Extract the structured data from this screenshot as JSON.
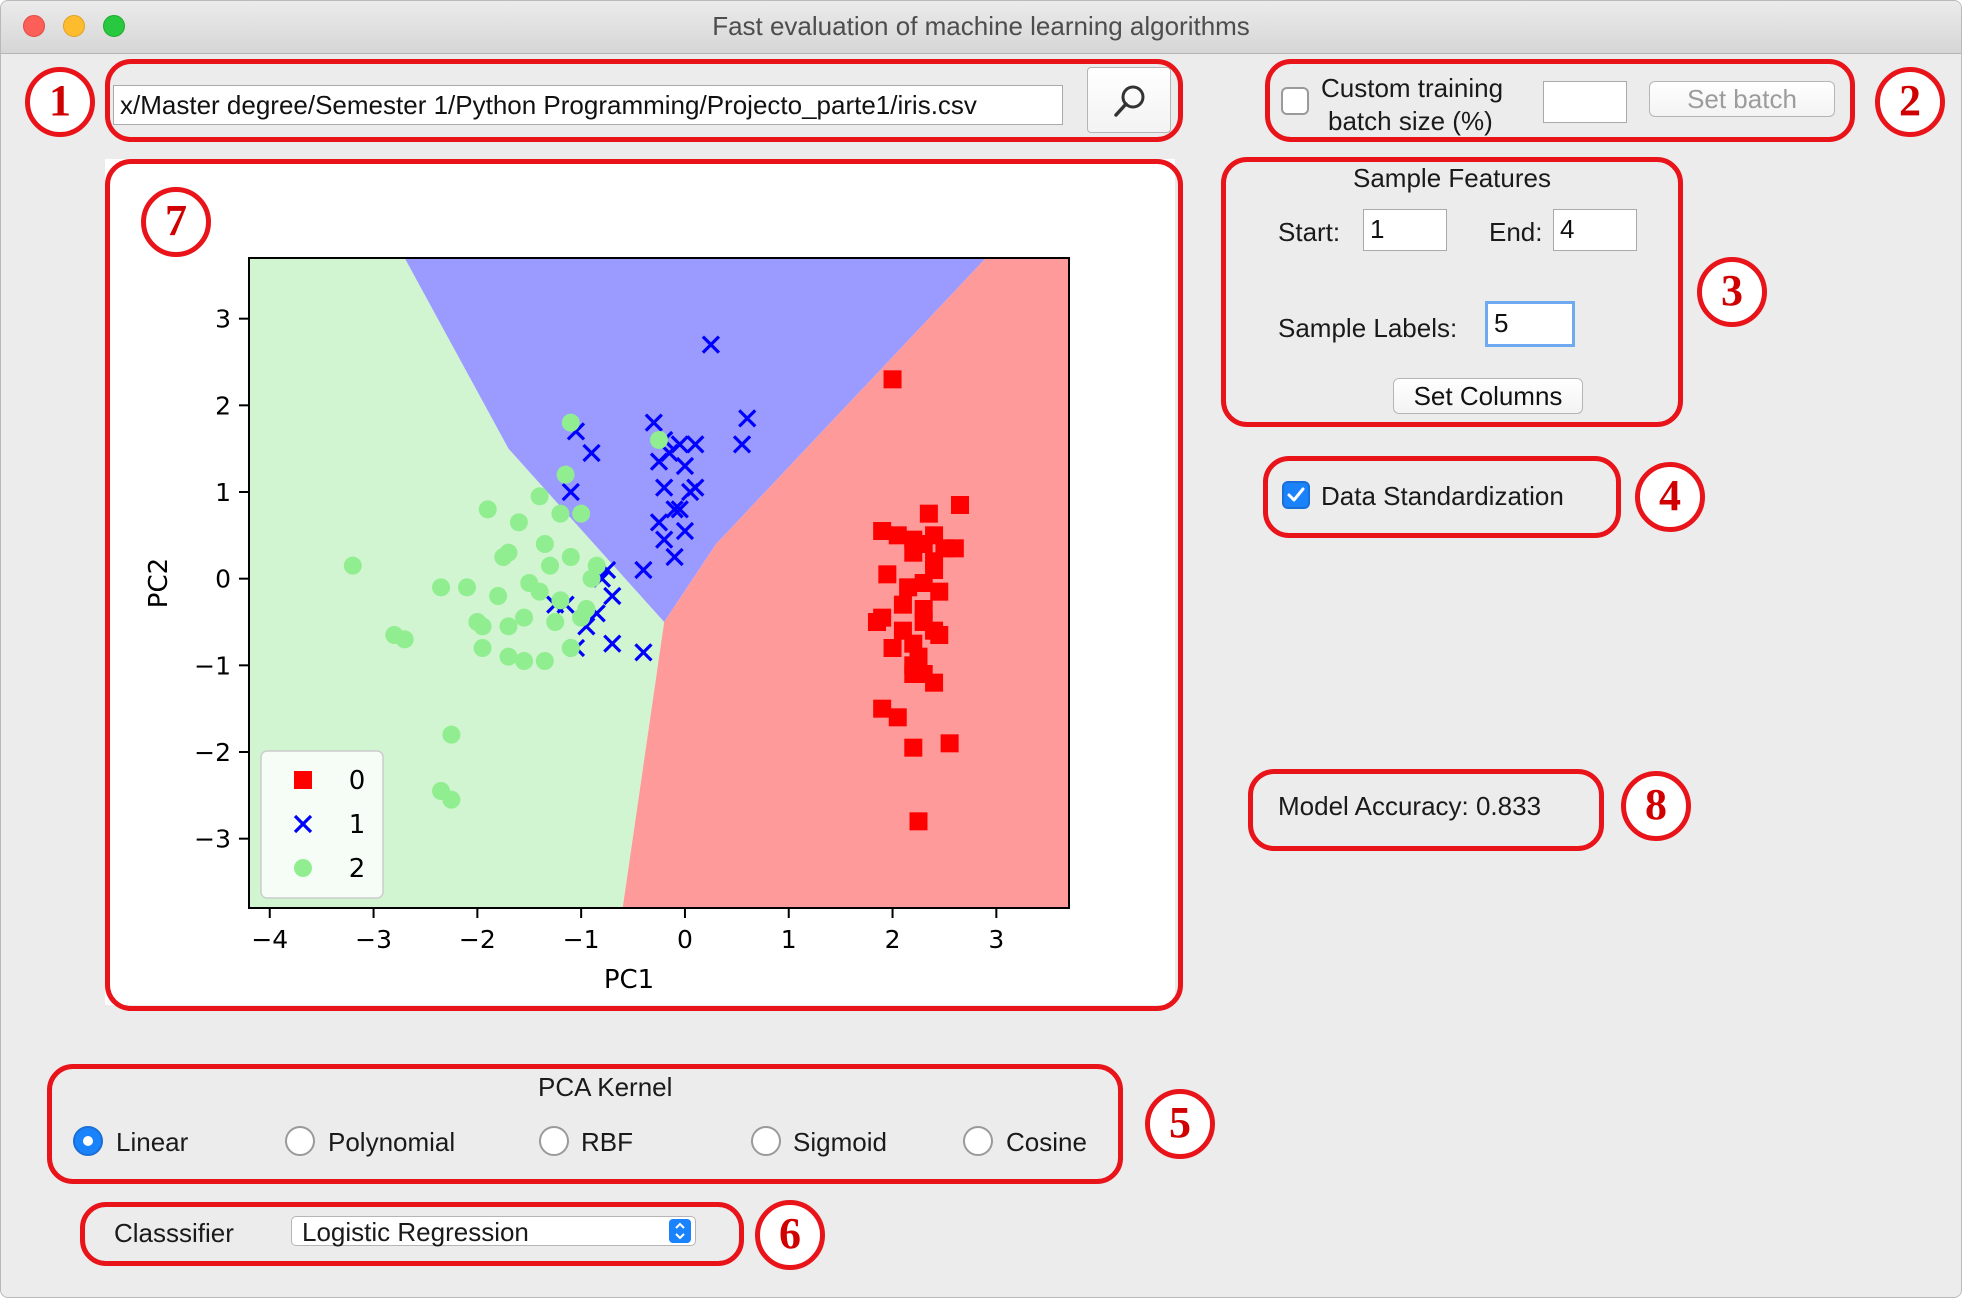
{
  "window": {
    "title": "Fast evaluation of machine learning algorithms"
  },
  "file_path": {
    "value": "x/Master degree/Semester 1/Python Programming/Projecto_parte1/iris.csv"
  },
  "batch": {
    "checkbox_label_line1": "Custom training",
    "checkbox_label_line2": "batch size (%)",
    "checked": false,
    "value": "",
    "button_label": "Set batch"
  },
  "sample_features": {
    "title": "Sample Features",
    "start_label": "Start:",
    "start_value": "1",
    "end_label": "End:",
    "end_value": "4",
    "labels_label": "Sample Labels:",
    "labels_value": "5",
    "button_label": "Set Columns"
  },
  "standardization": {
    "label": "Data Standardization",
    "checked": true
  },
  "accuracy": {
    "text": "Model Accuracy: 0.833"
  },
  "pca_kernel": {
    "title": "PCA Kernel",
    "options": [
      "Linear",
      "Polynomial",
      "RBF",
      "Sigmoid",
      "Cosine"
    ],
    "selected": "Linear"
  },
  "classifier": {
    "label": "Classsifier",
    "selected": "Logistic Regression"
  },
  "annotations": [
    "1",
    "2",
    "3",
    "4",
    "5",
    "6",
    "7",
    "8"
  ],
  "colors": {
    "highlight": "#e8141a",
    "class0": "#ff0000",
    "class1": "#0000ff",
    "class2": "#90ee90",
    "region0": "#ff9a9a",
    "region1": "#9a9aff",
    "region2": "#d0f5d0"
  },
  "chart_data": {
    "type": "scatter",
    "title": "",
    "xlabel": "PC1",
    "ylabel": "PC2",
    "xlim": [
      -4.2,
      3.7
    ],
    "ylim": [
      -3.8,
      3.7
    ],
    "xticks": [
      -4,
      -3,
      -2,
      -1,
      0,
      1,
      2,
      3
    ],
    "yticks": [
      -3,
      -2,
      -1,
      0,
      1,
      2,
      3
    ],
    "tick_labels_x": [
      "−4",
      "−3",
      "−2",
      "−1",
      "0",
      "1",
      "2",
      "3"
    ],
    "tick_labels_y": [
      "−3",
      "−2",
      "−1",
      "0",
      "1",
      "2",
      "3"
    ],
    "legend_position": "lower left",
    "regions": [
      {
        "class": "2",
        "polygon": [
          [
            -4.2,
            3.7
          ],
          [
            -2.7,
            3.7
          ],
          [
            -1.7,
            1.5
          ],
          [
            -0.2,
            -0.5
          ],
          [
            -0.6,
            -3.8
          ],
          [
            -4.2,
            -3.8
          ]
        ]
      },
      {
        "class": "1",
        "polygon": [
          [
            -2.7,
            3.7
          ],
          [
            2.9,
            3.7
          ],
          [
            0.3,
            0.4
          ],
          [
            -0.2,
            -0.5
          ],
          [
            -1.7,
            1.5
          ]
        ]
      },
      {
        "class": "0",
        "polygon": [
          [
            2.9,
            3.7
          ],
          [
            3.7,
            3.7
          ],
          [
            3.7,
            -3.8
          ],
          [
            -0.6,
            -3.8
          ],
          [
            -0.2,
            -0.5
          ],
          [
            0.3,
            0.4
          ]
        ]
      }
    ],
    "series": [
      {
        "name": "0",
        "marker": "square",
        "color": "#ff0000",
        "x": [
          2.0,
          1.9,
          2.05,
          2.2,
          2.3,
          2.4,
          2.65,
          2.35,
          2.5,
          2.2,
          2.4,
          2.6,
          1.95,
          2.15,
          2.3,
          2.4,
          2.45,
          1.85,
          2.1,
          2.3,
          2.45,
          1.9,
          2.0,
          2.2,
          2.4,
          2.1,
          2.3,
          2.2,
          2.3,
          2.4,
          2.2,
          2.25,
          1.9,
          2.05,
          2.2,
          2.55,
          2.25
        ],
        "y": [
          2.3,
          0.55,
          0.5,
          0.45,
          0.4,
          0.5,
          0.85,
          0.75,
          0.35,
          0.3,
          0.2,
          0.35,
          0.05,
          -0.1,
          -0.05,
          0.1,
          -0.15,
          -0.5,
          -0.6,
          -0.5,
          -0.65,
          -0.45,
          -0.8,
          -0.75,
          -0.6,
          -0.3,
          -0.35,
          -1.0,
          -1.1,
          -1.2,
          -1.1,
          -0.9,
          -1.5,
          -1.6,
          -1.95,
          -1.9,
          -2.8
        ]
      },
      {
        "name": "1",
        "marker": "x",
        "color": "#0000ff",
        "x": [
          0.25,
          -0.3,
          -0.2,
          -0.05,
          0.1,
          0.6,
          0.55,
          -1.05,
          -0.9,
          -1.1,
          -0.25,
          -0.15,
          0.0,
          0.1,
          0.05,
          -0.2,
          -0.1,
          -0.25,
          -0.05,
          0.0,
          -0.2,
          -0.1,
          -0.4,
          -0.75,
          -0.8,
          -0.7,
          -0.85,
          -1.25,
          -1.15,
          -0.95,
          -1.05,
          -0.7,
          -0.4
        ],
        "y": [
          2.7,
          1.8,
          1.6,
          1.55,
          1.55,
          1.85,
          1.55,
          1.7,
          1.45,
          1.0,
          1.35,
          1.45,
          1.3,
          1.05,
          1.0,
          1.05,
          0.8,
          0.65,
          0.8,
          0.55,
          0.45,
          0.25,
          0.1,
          0.1,
          0.0,
          -0.2,
          -0.4,
          -0.3,
          -0.3,
          -0.55,
          -0.8,
          -0.75,
          -0.85
        ]
      },
      {
        "name": "2",
        "marker": "circle",
        "color": "#90ee90",
        "x": [
          -1.1,
          -0.25,
          -1.15,
          -1.4,
          -1.2,
          -1.0,
          -1.9,
          -1.6,
          -1.35,
          -1.7,
          -1.75,
          -1.3,
          -1.1,
          -0.85,
          -0.9,
          -3.2,
          -2.35,
          -2.1,
          -1.8,
          -1.5,
          -1.4,
          -1.2,
          -0.95,
          -2.7,
          -2.8,
          -2.0,
          -1.95,
          -1.7,
          -1.55,
          -1.25,
          -1.0,
          -1.1,
          -1.95,
          -1.7,
          -1.55,
          -1.35,
          -2.25,
          -2.35,
          -2.25
        ],
        "y": [
          1.8,
          1.6,
          1.2,
          0.95,
          0.75,
          0.75,
          0.8,
          0.65,
          0.4,
          0.3,
          0.25,
          0.15,
          0.25,
          0.15,
          0.0,
          0.15,
          -0.1,
          -0.1,
          -0.2,
          -0.05,
          -0.15,
          -0.25,
          -0.35,
          -0.7,
          -0.65,
          -0.5,
          -0.55,
          -0.55,
          -0.45,
          -0.5,
          -0.45,
          -0.8,
          -0.8,
          -0.9,
          -0.95,
          -0.95,
          -1.8,
          -2.45,
          -2.55
        ]
      }
    ]
  }
}
